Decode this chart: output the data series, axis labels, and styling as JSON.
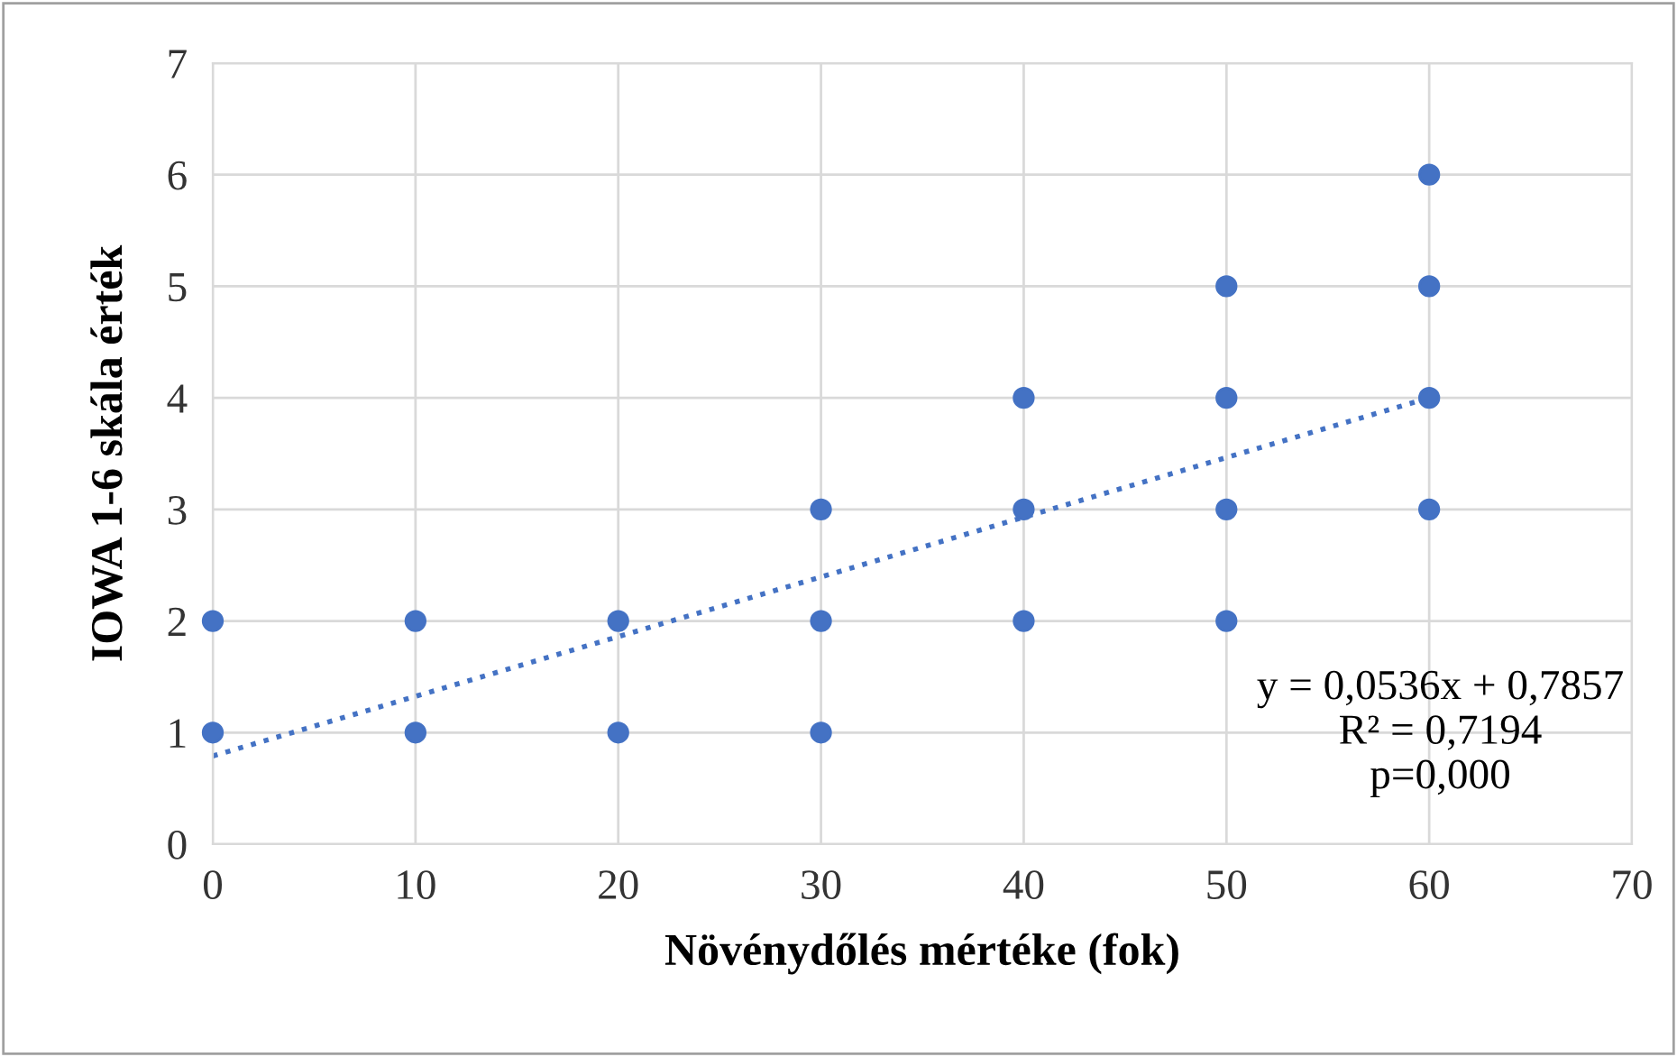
{
  "chart_data": {
    "type": "scatter",
    "xlabel": "Növénydőlés mértéke (fok)",
    "ylabel": "IOWA 1-6 skála érték",
    "series": [
      {
        "color": "#4472c4",
        "marker": "circle",
        "x": [
          0,
          0,
          10,
          10,
          20,
          20,
          30,
          30,
          30,
          40,
          40,
          40,
          50,
          50,
          50,
          50,
          60,
          60,
          60,
          60
        ],
        "values": [
          1,
          2,
          1,
          2,
          1,
          2,
          1,
          2,
          3,
          2,
          3,
          4,
          2,
          3,
          4,
          5,
          3,
          4,
          5,
          6
        ]
      },
      {
        "type": "line",
        "color": "#4472c4",
        "line_style": "dotted",
        "marker": "none",
        "x": [
          0,
          60
        ],
        "values": [
          0.79,
          4.0
        ]
      }
    ],
    "annotations": [
      "y = 0,0536x + 0,7857\nR² = 0,7194\np=0,000"
    ],
    "xlim": [
      0,
      70
    ],
    "xticks": [
      0,
      10,
      20,
      30,
      40,
      50,
      60,
      70
    ],
    "ylim": [
      0,
      7
    ],
    "yticks": [
      0,
      1,
      2,
      3,
      4,
      5,
      6,
      7
    ],
    "grid": true,
    "legend": false
  }
}
